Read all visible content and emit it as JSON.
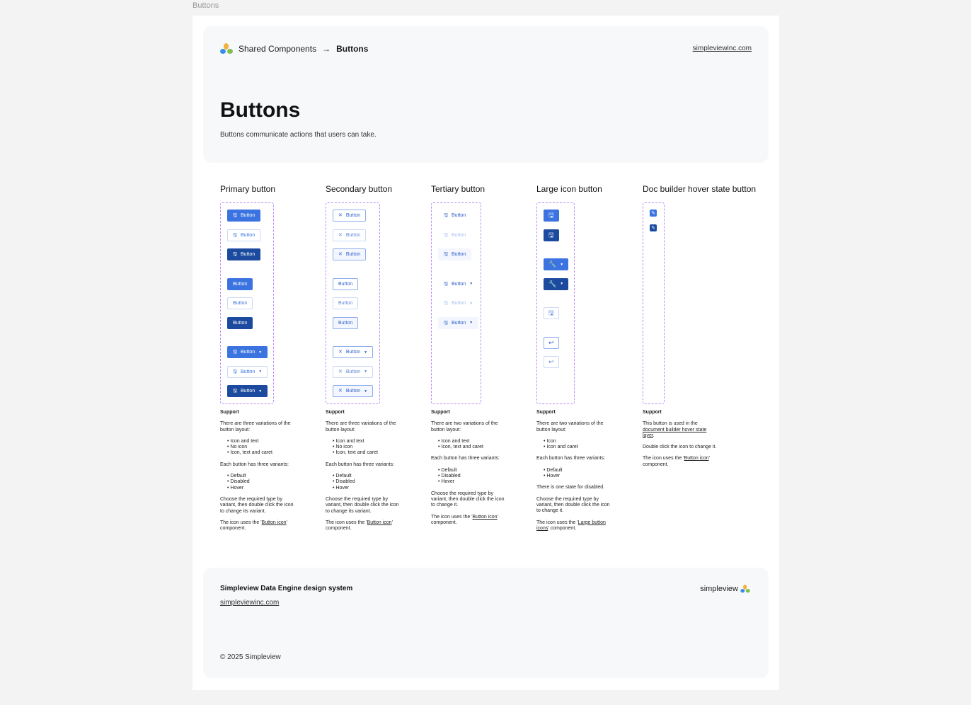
{
  "frame_label": "Buttons",
  "header": {
    "breadcrumb_parent": "Shared Components",
    "breadcrumb_sep": "→",
    "breadcrumb_current": "Buttons",
    "site_link": "simpleviewinc.com",
    "title": "Buttons",
    "description": "Buttons communicate actions that users can take."
  },
  "colors": {
    "primary": "#3b74e1",
    "primary_hover": "#1b4a9f",
    "dashed_border": "#b98cf5",
    "card_bg": "#f7f8fa"
  },
  "columns": [
    {
      "title": "Primary button",
      "kind": "primary",
      "width": 76,
      "groups": [
        [
          {
            "state": "default",
            "icon": "save-icon",
            "label": "Button"
          },
          {
            "state": "disabled",
            "icon": "save-icon",
            "label": "Button"
          },
          {
            "state": "hover",
            "icon": "save-icon",
            "label": "Button"
          }
        ],
        [
          {
            "state": "default",
            "label": "Button"
          },
          {
            "state": "disabled",
            "label": "Button"
          },
          {
            "state": "hover",
            "label": "Button"
          }
        ],
        [
          {
            "state": "default",
            "icon": "save-icon",
            "label": "Button",
            "caret": true
          },
          {
            "state": "disabled",
            "icon": "save-icon",
            "label": "Button",
            "caret": true
          },
          {
            "state": "hover",
            "icon": "save-icon",
            "label": "Button",
            "caret": true
          }
        ]
      ],
      "support": [
        {
          "p": "There are three variations of the button layout:"
        },
        {
          "ul": [
            "Icon and text",
            "No icon",
            "Icon, text and caret"
          ]
        },
        {
          "p": "Each button has three variants:"
        },
        {
          "ul": [
            "Default",
            "Disabled",
            "Hover"
          ]
        },
        {
          "p": "Choose the required type by variant, then double click the icon to change its variant."
        },
        {
          "p": "The icon uses the '",
          "link": "Button icon",
          "after": "' component."
        }
      ]
    },
    {
      "title": "Secondary button",
      "kind": "secondary",
      "width": 77,
      "groups": [
        [
          {
            "state": "default",
            "icon": "close-icon",
            "label": "Button"
          },
          {
            "state": "disabled",
            "icon": "close-icon",
            "label": "Button"
          },
          {
            "state": "hover",
            "icon": "close-icon",
            "label": "Button"
          }
        ],
        [
          {
            "state": "default",
            "label": "Button"
          },
          {
            "state": "disabled",
            "label": "Button"
          },
          {
            "state": "hover",
            "label": "Button"
          }
        ],
        [
          {
            "state": "default",
            "icon": "close-icon",
            "label": "Button",
            "caret": true
          },
          {
            "state": "disabled",
            "icon": "close-icon",
            "label": "Button",
            "caret": true
          },
          {
            "state": "hover",
            "icon": "close-icon",
            "label": "Button",
            "caret": true
          }
        ]
      ],
      "support": [
        {
          "p": "There are three variations of the button layout:"
        },
        {
          "ul": [
            "Icon and text",
            "No icon",
            "Icon, text and caret"
          ]
        },
        {
          "p": "Each button has three variants:"
        },
        {
          "ul": [
            "Default",
            "Disabled",
            "Hover"
          ]
        },
        {
          "p": "Choose the required type by variant, then double click the icon to change its variant."
        },
        {
          "p": "The icon uses the '",
          "link": "Button icon",
          "after": "' component."
        }
      ]
    },
    {
      "title": "Tertiary button",
      "kind": "tertiary",
      "width": 71,
      "groups": [
        [
          {
            "state": "default",
            "icon": "save-icon",
            "label": "Button"
          },
          {
            "state": "disabled",
            "icon": "save-icon",
            "label": "Button"
          },
          {
            "state": "hover",
            "icon": "save-icon",
            "label": "Button"
          }
        ],
        [
          {
            "state": "default",
            "icon": "save-icon",
            "label": "Button",
            "caret": true
          },
          {
            "state": "disabled",
            "icon": "save-icon",
            "label": "Button",
            "caret": true
          },
          {
            "state": "hover",
            "icon": "save-icon",
            "label": "Button",
            "caret": true
          }
        ]
      ],
      "support": [
        {
          "p": "There are two variations of the button layout:"
        },
        {
          "ul": [
            "Icon and text",
            "Icon, text and caret"
          ]
        },
        {
          "p": "Each button has three variants:"
        },
        {
          "ul": [
            "Default",
            "Disabled",
            "Hover"
          ]
        },
        {
          "p": "Choose the required type by variant, then double click the icon to change it."
        },
        {
          "p": "The icon uses the '",
          "link": "Button icon",
          "after": "' component."
        }
      ]
    },
    {
      "title": "Large icon button",
      "kind": "primary large",
      "width": 54,
      "groups": [
        [
          {
            "state": "default",
            "icon": "save-icon"
          },
          {
            "state": "hover",
            "icon": "save-icon"
          }
        ],
        [
          {
            "state": "default",
            "icon": "wrench-icon",
            "caret": true
          },
          {
            "state": "hover",
            "icon": "wrench-icon",
            "caret": true
          }
        ],
        [
          {
            "state": "disabled",
            "icon": "save-icon"
          }
        ],
        [
          {
            "state": "default",
            "icon": "undo-icon",
            "kind": "secondary"
          },
          {
            "state": "disabled",
            "icon": "undo-icon",
            "kind": "secondary"
          }
        ]
      ],
      "support": [
        {
          "p": "There are two variations of the button layout:"
        },
        {
          "ul": [
            "Icon",
            "Icon and caret"
          ]
        },
        {
          "p": "Each button has three variants:"
        },
        {
          "ul": [
            "Default",
            "Hover"
          ]
        },
        {
          "p": "There is one state for disabled."
        },
        {
          "p": "Choose the required type by variant, then double click the icon to change it."
        },
        {
          "p": "The icon uses the '",
          "link": "Large button icons",
          "after": "' component."
        }
      ]
    },
    {
      "title": "Doc builder hover state button",
      "kind": "doc",
      "width": 31,
      "buttons": [
        {
          "state": "default",
          "icon": "pencil-icon"
        },
        {
          "state": "hover",
          "icon": "pencil-icon"
        }
      ],
      "support": [
        {
          "p": "This button is used in the ",
          "link": "document builder hover state layer",
          "after": "."
        },
        {
          "p": "Double click the icon to change it."
        },
        {
          "p": "The icon uses the '",
          "link": "Button icon",
          "after": "' component."
        }
      ]
    }
  ],
  "support_heading": "Support",
  "footer": {
    "title": "Simpleview Data Engine design system",
    "link": "simpleviewinc.com",
    "logo_text": "simpleview",
    "copyright": "© 2025 Simpleview"
  }
}
